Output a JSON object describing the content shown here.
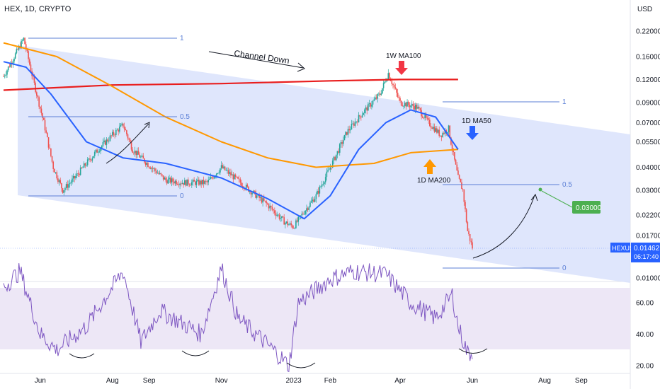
{
  "symbol_header": "HEX, 1D, CRYPTO",
  "currency": "USD",
  "colors": {
    "up": "#26a69a",
    "down": "#ef5350",
    "channel": "#d6e0fb",
    "ma_blue": "#2962ff",
    "ma_orange": "#ff9800",
    "ma_red": "#e91e1e",
    "fib": "#5b7fd6",
    "rsi_line": "#7e57c2",
    "rsi_band": "#ede7f6",
    "target_badge": "#4caf50",
    "price_badge": "#2962ff"
  },
  "annotations": {
    "channel_down": "Channel Down",
    "w1_ma100": "1W MA100",
    "d1_ma50": "1D MA50",
    "d1_ma200": "1D MA200",
    "target_price": "0.03000"
  },
  "price_badge": {
    "symbol": "HEXUSD",
    "price": "0.01462",
    "countdown": "06:17:40"
  },
  "fib_left": {
    "level_1": "1",
    "level_05": "0.5",
    "level_0": "0"
  },
  "fib_right": {
    "level_1": "1",
    "level_05": "0.5",
    "level_0": "0"
  },
  "chart_data": {
    "type": "candlestick",
    "y_scale": "log",
    "price_axis_ticks": [
      "0.22000",
      "0.16000",
      "0.12000",
      "0.09000",
      "0.07000",
      "0.05500",
      "0.04000",
      "0.03000",
      "0.02200",
      "0.01700",
      "0.01300",
      "0.01000"
    ],
    "price_axis_values": [
      0.22,
      0.16,
      0.12,
      0.09,
      0.07,
      0.055,
      0.04,
      0.03,
      0.022,
      0.017,
      0.013,
      0.01
    ],
    "rsi_axis_ticks": [
      "60.00",
      "40.00",
      "20.00"
    ],
    "rsi_axis_values": [
      60,
      40,
      20
    ],
    "x_axis_ticks": [
      "Jun",
      "Aug",
      "Sep",
      "Nov",
      "2023",
      "Feb",
      "Apr",
      "Jun",
      "Aug",
      "Sep"
    ],
    "price_path": [
      [
        "2022-05-01",
        0.125
      ],
      [
        "2022-05-10",
        0.16
      ],
      [
        "2022-05-18",
        0.2
      ],
      [
        "2022-05-26",
        0.12
      ],
      [
        "2022-06-04",
        0.07
      ],
      [
        "2022-06-12",
        0.04
      ],
      [
        "2022-06-20",
        0.03
      ],
      [
        "2022-06-30",
        0.035
      ],
      [
        "2022-07-10",
        0.042
      ],
      [
        "2022-07-20",
        0.05
      ],
      [
        "2022-08-01",
        0.06
      ],
      [
        "2022-08-10",
        0.068
      ],
      [
        "2022-08-18",
        0.05
      ],
      [
        "2022-09-01",
        0.041
      ],
      [
        "2022-09-15",
        0.034
      ],
      [
        "2022-10-01",
        0.033
      ],
      [
        "2022-10-20",
        0.033
      ],
      [
        "2022-11-01",
        0.04
      ],
      [
        "2022-11-10",
        0.036
      ],
      [
        "2022-11-25",
        0.03
      ],
      [
        "2022-12-10",
        0.025
      ],
      [
        "2022-12-25",
        0.02
      ],
      [
        "2023-01-01",
        0.019
      ],
      [
        "2023-01-10",
        0.023
      ],
      [
        "2023-01-20",
        0.028
      ],
      [
        "2023-02-01",
        0.04
      ],
      [
        "2023-02-15",
        0.062
      ],
      [
        "2023-03-01",
        0.08
      ],
      [
        "2023-03-15",
        0.1
      ],
      [
        "2023-03-22",
        0.13
      ],
      [
        "2023-04-01",
        0.09
      ],
      [
        "2023-04-15",
        0.085
      ],
      [
        "2023-04-25",
        0.07
      ],
      [
        "2023-05-05",
        0.06
      ],
      [
        "2023-05-12",
        0.065
      ],
      [
        "2023-05-15",
        0.05
      ],
      [
        "2023-05-20",
        0.035
      ],
      [
        "2023-05-24",
        0.03
      ],
      [
        "2023-05-28",
        0.018
      ],
      [
        "2023-06-01",
        0.01462
      ]
    ],
    "ma_1d_50_path": [
      [
        "2022-05-01",
        0.15
      ],
      [
        "2022-05-20",
        0.14
      ],
      [
        "2022-06-10",
        0.1
      ],
      [
        "2022-07-10",
        0.055
      ],
      [
        "2022-08-10",
        0.045
      ],
      [
        "2022-09-15",
        0.042
      ],
      [
        "2022-11-01",
        0.035
      ],
      [
        "2022-12-10",
        0.027
      ],
      [
        "2023-01-10",
        0.021
      ],
      [
        "2023-02-01",
        0.028
      ],
      [
        "2023-02-25",
        0.05
      ],
      [
        "2023-03-20",
        0.07
      ],
      [
        "2023-04-10",
        0.082
      ],
      [
        "2023-05-01",
        0.075
      ],
      [
        "2023-05-20",
        0.05
      ]
    ],
    "ma_1d_200_path": [
      [
        "2022-05-01",
        0.19
      ],
      [
        "2022-06-15",
        0.16
      ],
      [
        "2022-08-01",
        0.11
      ],
      [
        "2022-09-15",
        0.075
      ],
      [
        "2022-11-01",
        0.055
      ],
      [
        "2022-12-10",
        0.045
      ],
      [
        "2023-01-20",
        0.04
      ],
      [
        "2023-03-10",
        0.042
      ],
      [
        "2023-04-10",
        0.048
      ],
      [
        "2023-05-20",
        0.05
      ]
    ],
    "ma_1w_100_path": [
      [
        "2022-05-01",
        0.105
      ],
      [
        "2022-08-01",
        0.112
      ],
      [
        "2022-11-01",
        0.114
      ],
      [
        "2023-02-01",
        0.118
      ],
      [
        "2023-04-01",
        0.12
      ],
      [
        "2023-05-20",
        0.12
      ]
    ],
    "rsi_path": [
      [
        "2022-05-01",
        70
      ],
      [
        "2022-05-15",
        80
      ],
      [
        "2022-06-01",
        40
      ],
      [
        "2022-06-15",
        30
      ],
      [
        "2022-07-10",
        45
      ],
      [
        "2022-08-10",
        80
      ],
      [
        "2022-08-25",
        35
      ],
      [
        "2022-09-10",
        55
      ],
      [
        "2022-10-15",
        40
      ],
      [
        "2022-11-01",
        82
      ],
      [
        "2022-11-15",
        50
      ],
      [
        "2022-12-15",
        30
      ],
      [
        "2022-12-28",
        20
      ],
      [
        "2023-01-05",
        60
      ],
      [
        "2023-02-01",
        75
      ],
      [
        "2023-02-20",
        80
      ],
      [
        "2023-03-20",
        78
      ],
      [
        "2023-04-10",
        60
      ],
      [
        "2023-05-01",
        50
      ],
      [
        "2023-05-15",
        65
      ],
      [
        "2023-05-20",
        45
      ],
      [
        "2023-05-28",
        28
      ],
      [
        "2023-06-01",
        28
      ]
    ],
    "projection_target": 0.03
  }
}
